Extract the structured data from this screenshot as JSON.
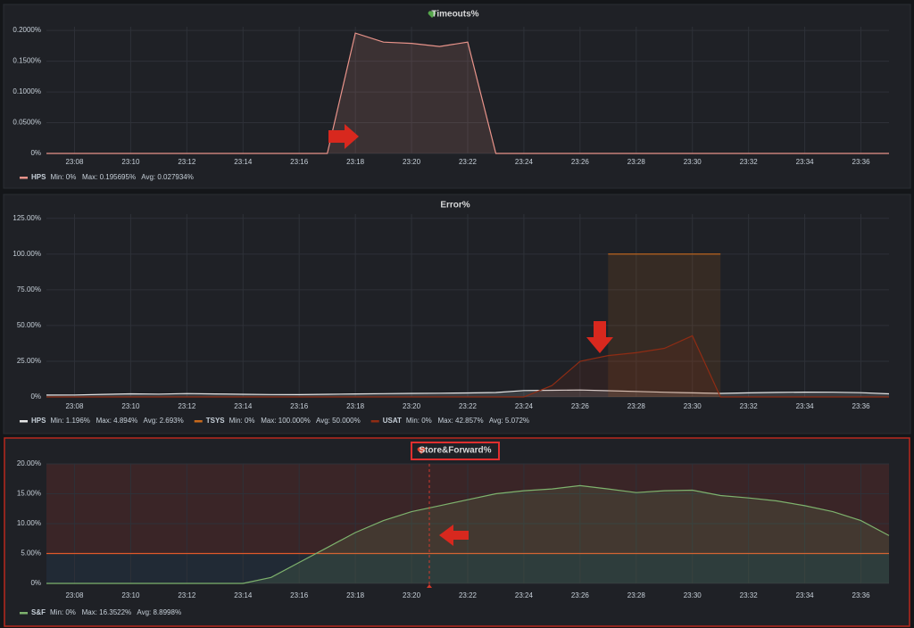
{
  "chart_data": [
    {
      "type": "line",
      "title": "Timeouts%",
      "x": [
        "23:07",
        "23:08",
        "23:09",
        "23:10",
        "23:11",
        "23:12",
        "23:13",
        "23:14",
        "23:15",
        "23:16",
        "23:17",
        "23:18",
        "23:19",
        "23:20",
        "23:21",
        "23:22",
        "23:23",
        "23:24",
        "23:25",
        "23:26",
        "23:27",
        "23:28",
        "23:29",
        "23:30",
        "23:31",
        "23:32",
        "23:33",
        "23:34",
        "23:35",
        "23:36",
        "23:37"
      ],
      "xlim": [
        "23:07",
        "23:37"
      ],
      "xticks": [
        "23:08",
        "23:10",
        "23:12",
        "23:14",
        "23:16",
        "23:18",
        "23:20",
        "23:22",
        "23:24",
        "23:26",
        "23:28",
        "23:30",
        "23:32",
        "23:34",
        "23:36"
      ],
      "ylim": [
        0,
        0.206
      ],
      "yticks": [
        {
          "value": 0,
          "label": "0%"
        },
        {
          "value": 0.05,
          "label": "0.0500%"
        },
        {
          "value": 0.1,
          "label": "0.1000%"
        },
        {
          "value": 0.15,
          "label": "0.1500%"
        },
        {
          "value": 0.2,
          "label": "0.2000%"
        }
      ],
      "grid": true,
      "series": [
        {
          "name": "HPS",
          "color": "#e8938a",
          "stats": "Min: 0%   Max: 0.195695%   Avg: 0.027934%",
          "values": [
            0,
            0,
            0,
            0,
            0,
            0,
            0,
            0,
            0,
            0,
            0,
            0.1957,
            0.181,
            0.179,
            0.174,
            0.181,
            0,
            0,
            0,
            0,
            0,
            0,
            0,
            0,
            0,
            0,
            0,
            0,
            0,
            0,
            0
          ]
        }
      ]
    },
    {
      "type": "line",
      "title": "Error%",
      "x": [
        "23:07",
        "23:08",
        "23:09",
        "23:10",
        "23:11",
        "23:12",
        "23:13",
        "23:14",
        "23:15",
        "23:16",
        "23:17",
        "23:18",
        "23:19",
        "23:20",
        "23:21",
        "23:22",
        "23:23",
        "23:24",
        "23:25",
        "23:26",
        "23:27",
        "23:28",
        "23:29",
        "23:30",
        "23:31",
        "23:32",
        "23:33",
        "23:34",
        "23:35",
        "23:36",
        "23:37"
      ],
      "xlim": [
        "23:07",
        "23:37"
      ],
      "xticks": [
        "23:08",
        "23:10",
        "23:12",
        "23:14",
        "23:16",
        "23:18",
        "23:20",
        "23:22",
        "23:24",
        "23:26",
        "23:28",
        "23:30",
        "23:32",
        "23:34",
        "23:36"
      ],
      "ylim": [
        0,
        128
      ],
      "yticks": [
        {
          "value": 0,
          "label": "0%"
        },
        {
          "value": 25,
          "label": "25.00%"
        },
        {
          "value": 50,
          "label": "50.00%"
        },
        {
          "value": 75,
          "label": "75.00%"
        },
        {
          "value": 100,
          "label": "100.00%"
        },
        {
          "value": 125,
          "label": "125.00%"
        }
      ],
      "grid": true,
      "series": [
        {
          "name": "HPS",
          "color": "#e6e6e6",
          "stats": "Min: 1.196%   Max: 4.894%   Avg: 2.693%",
          "values": [
            1.3,
            1.4,
            1.8,
            2.2,
            2.0,
            2.4,
            2.1,
            1.9,
            1.7,
            1.6,
            1.9,
            2.1,
            2.3,
            2.5,
            2.6,
            2.8,
            3.1,
            4.5,
            4.7,
            4.894,
            4.4,
            3.9,
            3.3,
            2.9,
            2.5,
            2.9,
            3.2,
            3.4,
            3.3,
            3.0,
            2.2
          ]
        },
        {
          "name": "TSYS",
          "color": "#c8691c",
          "stats": "Min: 0%   Max: 100.000%   Avg: 50.000%",
          "values": [
            null,
            null,
            null,
            null,
            null,
            null,
            null,
            null,
            null,
            null,
            null,
            null,
            null,
            null,
            null,
            null,
            null,
            null,
            null,
            null,
            100,
            100,
            100,
            100,
            100,
            null,
            null,
            null,
            null,
            null,
            null
          ]
        },
        {
          "name": "USAT",
          "color": "#8f2c14",
          "stats": "Min: 0%   Max: 42.857%   Avg: 5.072%",
          "values": [
            0,
            0,
            0,
            0,
            0,
            0,
            0,
            0,
            0,
            0,
            0,
            0,
            0,
            0,
            0,
            0,
            0,
            0,
            8,
            25,
            29,
            31,
            34,
            42.857,
            0,
            0,
            0,
            0,
            0,
            0,
            0
          ]
        }
      ]
    },
    {
      "type": "line",
      "title": "Store&Forward%",
      "x": [
        "23:07",
        "23:08",
        "23:09",
        "23:10",
        "23:11",
        "23:12",
        "23:13",
        "23:14",
        "23:15",
        "23:16",
        "23:17",
        "23:18",
        "23:19",
        "23:20",
        "23:21",
        "23:22",
        "23:23",
        "23:24",
        "23:25",
        "23:26",
        "23:27",
        "23:28",
        "23:29",
        "23:30",
        "23:31",
        "23:32",
        "23:33",
        "23:34",
        "23:35",
        "23:36",
        "23:37"
      ],
      "xlim": [
        "23:07",
        "23:37"
      ],
      "xticks": [
        "23:08",
        "23:10",
        "23:12",
        "23:14",
        "23:16",
        "23:18",
        "23:20",
        "23:22",
        "23:24",
        "23:26",
        "23:28",
        "23:30",
        "23:32",
        "23:34",
        "23:36"
      ],
      "ylim": [
        0,
        20
      ],
      "yticks": [
        {
          "value": 0,
          "label": "0%"
        },
        {
          "value": 5,
          "label": "5.00%"
        },
        {
          "value": 10,
          "label": "10.00%"
        },
        {
          "value": 15,
          "label": "15.00%"
        },
        {
          "value": 20,
          "label": "20.00%"
        }
      ],
      "grid": true,
      "threshold": 5,
      "series": [
        {
          "name": "S&F",
          "color": "#7eb26d",
          "stats": "Min: 0%   Max: 16.3522%   Avg: 8.8998%",
          "values": [
            0,
            0,
            0,
            0,
            0,
            0,
            0,
            0,
            1,
            3.5,
            6,
            8.5,
            10.5,
            12,
            13,
            14,
            15,
            15.5,
            15.8,
            16.3522,
            15.8,
            15.2,
            15.5,
            15.6,
            14.7,
            14.3,
            13.8,
            13,
            12,
            10.5,
            8
          ]
        }
      ]
    }
  ]
}
